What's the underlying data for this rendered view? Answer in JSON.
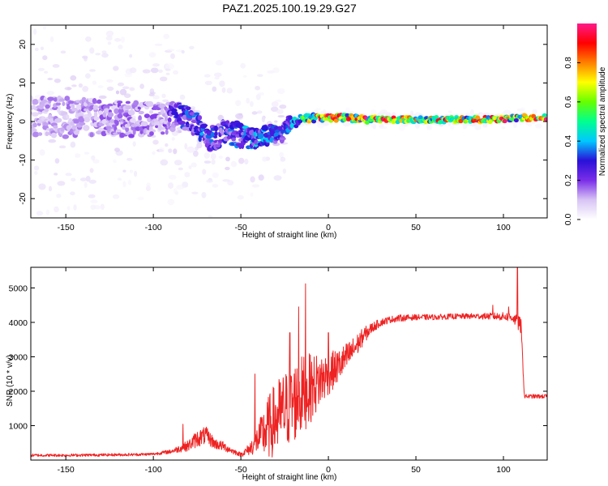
{
  "title": "PAZ1.2025.100.19.29.G27",
  "chart_data": [
    {
      "type": "heatmap",
      "xlabel": "Height of straight line (km)",
      "ylabel": "Frequency (Hz)",
      "xlim": [
        -170,
        125
      ],
      "ylim": [
        -25,
        25
      ],
      "xticks": [
        -150,
        -100,
        -50,
        0,
        50,
        100
      ],
      "yticks": [
        -20,
        -10,
        0,
        10,
        20
      ],
      "colorbar": {
        "label": "Normalized spectral amplitude",
        "range": [
          0,
          1
        ],
        "ticks": [
          0.0,
          0.2,
          0.4,
          0.6,
          0.8
        ],
        "colors": [
          "#ffffff",
          "#d8c4f4",
          "#7a2ee8",
          "#2a10d8",
          "#00c8ff",
          "#00ff90",
          "#66ff00",
          "#ffff00",
          "#ff8000",
          "#ff0000",
          "#ff1a8a"
        ]
      },
      "ridge": [
        {
          "x": -170,
          "f": 1.5,
          "amp": 0.12,
          "spread": 5.0
        },
        {
          "x": -150,
          "f": 1.0,
          "amp": 0.12,
          "spread": 5.0
        },
        {
          "x": -130,
          "f": 1.0,
          "amp": 0.14,
          "spread": 4.5
        },
        {
          "x": -110,
          "f": 0.5,
          "amp": 0.14,
          "spread": 4.5
        },
        {
          "x": -95,
          "f": 0.5,
          "amp": 0.15,
          "spread": 4.0
        },
        {
          "x": -85,
          "f": 2.0,
          "amp": 0.25,
          "spread": 3.0
        },
        {
          "x": -75,
          "f": -1.0,
          "amp": 0.3,
          "spread": 3.0
        },
        {
          "x": -68,
          "f": -4.5,
          "amp": 0.3,
          "spread": 3.0
        },
        {
          "x": -60,
          "f": -3.0,
          "amp": 0.25,
          "spread": 3.0
        },
        {
          "x": -50,
          "f": -3.5,
          "amp": 0.3,
          "spread": 3.0
        },
        {
          "x": -42,
          "f": -4.5,
          "amp": 0.35,
          "spread": 2.5
        },
        {
          "x": -35,
          "f": -3.5,
          "amp": 0.3,
          "spread": 2.5
        },
        {
          "x": -28,
          "f": -3.5,
          "amp": 0.3,
          "spread": 2.5
        },
        {
          "x": -24,
          "f": -1.0,
          "amp": 0.25,
          "spread": 2.0
        },
        {
          "x": -15,
          "f": 0.5,
          "amp": 0.55,
          "spread": 1.0
        },
        {
          "x": -10,
          "f": 1.0,
          "amp": 0.6,
          "spread": 1.0
        },
        {
          "x": 0,
          "f": 1.0,
          "amp": 0.85,
          "spread": 0.8
        },
        {
          "x": 10,
          "f": 1.0,
          "amp": 0.7,
          "spread": 0.8
        },
        {
          "x": 20,
          "f": 0.5,
          "amp": 0.75,
          "spread": 0.8
        },
        {
          "x": 30,
          "f": 0.5,
          "amp": 0.8,
          "spread": 0.7
        },
        {
          "x": 45,
          "f": 0.5,
          "amp": 0.65,
          "spread": 0.7
        },
        {
          "x": 60,
          "f": 0.5,
          "amp": 0.7,
          "spread": 0.7
        },
        {
          "x": 75,
          "f": 0.5,
          "amp": 0.65,
          "spread": 0.7
        },
        {
          "x": 90,
          "f": 0.5,
          "amp": 0.7,
          "spread": 0.7
        },
        {
          "x": 100,
          "f": 0.5,
          "amp": 0.85,
          "spread": 0.7
        },
        {
          "x": 108,
          "f": 1.0,
          "amp": 0.55,
          "spread": 0.7
        },
        {
          "x": 125,
          "f": 1.0,
          "amp": 0.85,
          "spread": 0.7
        }
      ]
    },
    {
      "type": "line",
      "xlabel": "Height of straight line (km)",
      "ylabel": "SNR (10 * v/v)",
      "xlim": [
        -170,
        125
      ],
      "ylim": [
        0,
        5600
      ],
      "xticks": [
        -150,
        -100,
        -50,
        0,
        50,
        100
      ],
      "yticks": [
        1000,
        2000,
        3000,
        4000,
        5000
      ],
      "color": "#ee2222",
      "x": [
        -170,
        -150,
        -130,
        -110,
        -100,
        -90,
        -80,
        -75,
        -70,
        -65,
        -60,
        -55,
        -50,
        -45,
        -40,
        -35,
        -30,
        -25,
        -20,
        -15,
        -10,
        -5,
        0,
        5,
        10,
        15,
        20,
        25,
        30,
        35,
        40,
        50,
        60,
        70,
        80,
        90,
        100,
        105,
        108,
        110,
        112,
        115,
        120,
        125
      ],
      "y": [
        140,
        140,
        150,
        160,
        175,
        250,
        420,
        620,
        720,
        480,
        400,
        270,
        160,
        320,
        620,
        900,
        1200,
        1450,
        1650,
        1900,
        2100,
        2300,
        2500,
        2700,
        2950,
        3250,
        3600,
        3850,
        4000,
        4080,
        4120,
        4150,
        4150,
        4170,
        4180,
        4180,
        4170,
        4150,
        4000,
        3900,
        1850,
        1850,
        1850,
        1850
      ],
      "noise": [
        40,
        40,
        40,
        40,
        40,
        60,
        160,
        250,
        260,
        160,
        140,
        90,
        60,
        180,
        450,
        900,
        1100,
        1150,
        1200,
        1150,
        1000,
        800,
        650,
        500,
        450,
        350,
        250,
        150,
        110,
        100,
        100,
        80,
        80,
        80,
        80,
        90,
        120,
        140,
        200,
        250,
        60,
        60,
        60,
        60
      ],
      "spikes": [
        {
          "x": -83,
          "y": 1040
        },
        {
          "x": -42,
          "y": 2500
        },
        {
          "x": -22,
          "y": 3700
        },
        {
          "x": -17,
          "y": 4450
        },
        {
          "x": -13,
          "y": 5120
        },
        {
          "x": 0,
          "y": 3700
        },
        {
          "x": 94,
          "y": 4500
        },
        {
          "x": 103,
          "y": 4450
        },
        {
          "x": 108,
          "y": 5600
        }
      ]
    }
  ]
}
